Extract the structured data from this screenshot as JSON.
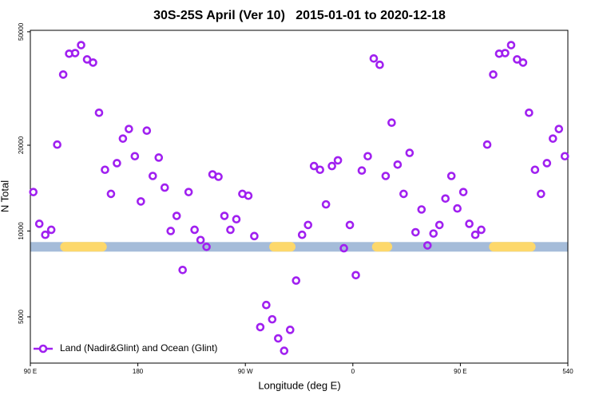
{
  "chart_data": {
    "type": "scatter",
    "title": "30S-25S April (Ver 10)   2015-01-01 to 2020-12-18",
    "xlabel": "Longitude (deg E)",
    "ylabel": "N Total",
    "log_y": true,
    "xlim": [
      90,
      540
    ],
    "ylim": [
      3440,
      50600
    ],
    "xticks": [
      {
        "value": 90,
        "label": "90 E"
      },
      180,
      {
        "value": 270,
        "label": "90 W"
      },
      {
        "value": 360,
        "label": "0"
      },
      {
        "value": 450,
        "label": "90 E"
      },
      540
    ],
    "yticks": [
      5000,
      10000,
      20000,
      50000
    ],
    "legend": "lower left",
    "x": [
      92.5,
      97.5,
      102.5,
      107.5,
      112.5,
      117.5,
      122.5,
      127.5,
      132.5,
      137.5,
      142.5,
      147.5,
      152.5,
      157.5,
      162.5,
      167.5,
      172.5,
      177.5,
      182.5,
      187.5,
      192.5,
      197.5,
      202.5,
      207.5,
      212.5,
      217.5,
      222.5,
      227.5,
      232.5,
      237.5,
      242.5,
      247.5,
      252.5,
      257.5,
      262.5,
      267.5,
      272.5,
      277.5,
      282.5,
      287.5,
      292.5,
      297.5,
      302.5,
      307.5,
      312.5,
      317.5,
      322.5,
      327.5,
      332.5,
      337.5,
      342.5,
      347.5,
      352.5,
      357.5,
      362.5,
      367.5,
      372.5,
      377.5,
      382.5,
      387.5,
      392.5,
      397.5,
      402.5,
      407.5,
      412.5,
      417.5,
      422.5,
      427.5,
      432.5,
      437.5,
      442.5,
      447.5,
      452.5,
      457.5,
      462.5,
      467.5,
      472.5,
      477.5,
      482.5,
      487.5,
      492.5,
      497.5,
      502.5,
      507.5,
      512.5,
      517.5,
      522.5,
      527.5,
      532.5,
      537.5
    ],
    "series": [
      {
        "name": "Land (Nadir&Glint) and Ocean (Glint)",
        "color": "#a020f0",
        "values": [
          13700,
          10600,
          9700,
          10100,
          20100,
          35400,
          41900,
          42100,
          44900,
          40000,
          39000,
          26000,
          16400,
          13500,
          17300,
          21100,
          22800,
          18300,
          12700,
          22500,
          15600,
          18100,
          14200,
          10000,
          11300,
          7300,
          13700,
          10100,
          9300,
          8800,
          15800,
          15500,
          11300,
          10100,
          11000,
          13500,
          13300,
          9600,
          4600,
          5500,
          4900,
          4200,
          3800,
          4500,
          6700,
          9700,
          10500,
          16900,
          16400,
          12400,
          16900,
          17700,
          8700,
          10500,
          7000,
          16300,
          18300,
          40300,
          38300,
          15600,
          24000,
          17100,
          13500,
          18800,
          9900,
          11900,
          8900,
          9800,
          10500,
          13000,
          15600,
          12000,
          13700,
          10600,
          9700,
          10100,
          20100,
          35400,
          41900,
          42100,
          44900,
          40000,
          39000,
          26000,
          16400,
          13500,
          17300,
          21100,
          22800,
          18300
        ]
      }
    ],
    "band": {
      "y": 8800,
      "color": "#a5bcd9",
      "land_color": "#fdd86b",
      "land": [
        [
          115,
          154
        ],
        [
          290,
          312
        ],
        [
          376,
          393
        ],
        [
          474,
          513
        ]
      ]
    }
  }
}
